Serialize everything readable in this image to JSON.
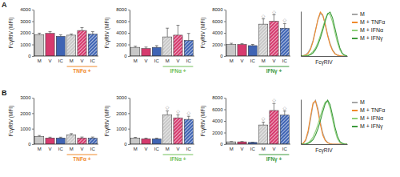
{
  "chart_data": [
    {
      "type": "bar",
      "title": "A",
      "y_label": "FcγRIV (MFI)",
      "categories": [
        "M",
        "V",
        "IC",
        "M",
        "V",
        "IC"
      ],
      "values": [
        1850,
        1950,
        1700,
        1800,
        2200,
        1900
      ],
      "errors": [
        120,
        150,
        130,
        100,
        250,
        200
      ],
      "colors": [
        "#c8c8c8",
        "#d63a6e",
        "#3f64b4",
        "#c8c8c8",
        "#d63a6e",
        "#3f64b4"
      ],
      "ylim": [
        0,
        4000
      ],
      "yticks": [
        0,
        1000,
        2000,
        3000,
        4000
      ],
      "grid": false,
      "annotations": [
        {
          "text": "TNFα +",
          "categories": [
            3,
            5
          ],
          "color": "#f08a2c"
        }
      ]
    },
    {
      "type": "bar",
      "y_label": "FcγRIV (MFI)",
      "categories": [
        "M",
        "V",
        "IC",
        "M",
        "V",
        "IC"
      ],
      "values": [
        1500,
        1300,
        1500,
        3300,
        3600,
        2700
      ],
      "errors": [
        200,
        250,
        300,
        1500,
        1700,
        1200
      ],
      "colors": [
        "#c8c8c8",
        "#d63a6e",
        "#3f64b4",
        "#c8c8c8",
        "#d63a6e",
        "#3f64b4"
      ],
      "ylim": [
        0,
        8000
      ],
      "yticks": [
        0,
        2000,
        4000,
        6000,
        8000
      ],
      "grid": false,
      "annotations": [
        {
          "text": "IFNα +",
          "categories": [
            3,
            5
          ],
          "color": "#72c05b"
        }
      ]
    },
    {
      "type": "bar",
      "y_label": "FcγRIV (MFI)",
      "categories": [
        "M",
        "V",
        "IC",
        "M",
        "V",
        "IC"
      ],
      "values": [
        2000,
        2000,
        1800,
        5500,
        6000,
        4800
      ],
      "errors": [
        200,
        150,
        200,
        900,
        1100,
        800
      ],
      "colors": [
        "#c8c8c8",
        "#d63a6e",
        "#3f64b4",
        "#c8c8c8",
        "#d63a6e",
        "#3f64b4"
      ],
      "ylim": [
        0,
        8000
      ],
      "yticks": [
        0,
        2000,
        4000,
        6000,
        8000
      ],
      "grid": false,
      "annotations": [
        {
          "text": "IFNγ +",
          "categories": [
            3,
            5
          ],
          "color": "#3d9a3d"
        },
        {
          "text": "◇",
          "categories": [
            3,
            3
          ]
        },
        {
          "text": "◇",
          "categories": [
            4,
            4
          ]
        },
        {
          "text": "◇",
          "categories": [
            5,
            5
          ]
        }
      ]
    },
    {
      "type": "line",
      "x_label": "FcγRIV",
      "tick_labels": false,
      "legend": "right",
      "x": [
        0,
        1,
        2,
        3,
        4,
        5,
        6,
        7,
        8,
        9,
        10,
        11,
        12,
        13,
        14,
        15,
        16,
        17,
        18,
        19
      ],
      "xlim": [
        0,
        19
      ],
      "ylim": [
        0,
        100
      ],
      "xticks": [],
      "yticks": [],
      "series": [
        {
          "name": "M",
          "color": "#a6a6a6",
          "values": [
            0,
            1,
            3,
            8,
            18,
            35,
            58,
            80,
            95,
            90,
            72,
            48,
            28,
            14,
            6,
            2,
            1,
            0,
            0,
            0
          ]
        },
        {
          "name": "M + TNFα",
          "color": "#f08a2c",
          "values": [
            0,
            1,
            2,
            6,
            15,
            32,
            56,
            82,
            98,
            92,
            70,
            45,
            25,
            12,
            5,
            2,
            1,
            0,
            0,
            0
          ]
        },
        {
          "name": "M + IFNα",
          "color": "#8fd17a",
          "values": [
            0,
            0,
            1,
            2,
            5,
            10,
            18,
            30,
            46,
            64,
            82,
            95,
            92,
            76,
            52,
            30,
            14,
            5,
            1,
            0
          ]
        },
        {
          "name": "M + IFNγ",
          "color": "#3d9a3d",
          "values": [
            0,
            0,
            0,
            1,
            3,
            7,
            14,
            25,
            40,
            58,
            78,
            94,
            98,
            85,
            62,
            38,
            18,
            6,
            2,
            0
          ]
        }
      ]
    },
    {
      "type": "bar",
      "title": "B",
      "y_label": "FcγRIV (MFI)",
      "categories": [
        "M",
        "V",
        "IC",
        "M",
        "V",
        "IC"
      ],
      "values": [
        500,
        400,
        400,
        600,
        400,
        400
      ],
      "errors": [
        60,
        50,
        50,
        80,
        60,
        60
      ],
      "colors": [
        "#c8c8c8",
        "#d63a6e",
        "#3f64b4",
        "#c8c8c8",
        "#d63a6e",
        "#3f64b4"
      ],
      "ylim": [
        0,
        3000
      ],
      "yticks": [
        0,
        1000,
        2000,
        3000
      ],
      "grid": false,
      "annotations": [
        {
          "text": "TNFα +",
          "categories": [
            3,
            5
          ],
          "color": "#f08a2c"
        }
      ]
    },
    {
      "type": "bar",
      "y_label": "FcγRIV (MFI)",
      "categories": [
        "M",
        "V",
        "IC",
        "M",
        "V",
        "IC"
      ],
      "values": [
        400,
        350,
        350,
        1900,
        1700,
        1600
      ],
      "errors": [
        40,
        40,
        40,
        250,
        200,
        200
      ],
      "colors": [
        "#c8c8c8",
        "#d63a6e",
        "#3f64b4",
        "#c8c8c8",
        "#d63a6e",
        "#3f64b4"
      ],
      "ylim": [
        0,
        3000
      ],
      "yticks": [
        0,
        1000,
        2000,
        3000
      ],
      "grid": false,
      "annotations": [
        {
          "text": "IFNα +",
          "categories": [
            3,
            5
          ],
          "color": "#72c05b"
        },
        {
          "text": "◇",
          "categories": [
            3,
            3
          ]
        },
        {
          "text": "◇",
          "categories": [
            4,
            4
          ]
        },
        {
          "text": "◇",
          "categories": [
            5,
            5
          ]
        }
      ]
    },
    {
      "type": "bar",
      "y_label": "FcγRIV (MFI)",
      "categories": [
        "M",
        "V",
        "IC",
        "M",
        "V",
        "IC"
      ],
      "values": [
        400,
        400,
        300,
        3300,
        5800,
        5000
      ],
      "errors": [
        50,
        50,
        40,
        500,
        1200,
        700
      ],
      "colors": [
        "#c8c8c8",
        "#d63a6e",
        "#3f64b4",
        "#c8c8c8",
        "#d63a6e",
        "#3f64b4"
      ],
      "ylim": [
        0,
        8000
      ],
      "yticks": [
        0,
        2000,
        4000,
        6000,
        8000
      ],
      "grid": false,
      "annotations": [
        {
          "text": "IFNγ +",
          "categories": [
            3,
            5
          ],
          "color": "#3d9a3d"
        },
        {
          "text": "◇",
          "categories": [
            3,
            3
          ]
        },
        {
          "text": "◇",
          "categories": [
            4,
            4
          ]
        },
        {
          "text": "◇",
          "categories": [
            5,
            5
          ]
        }
      ]
    },
    {
      "type": "line",
      "x_label": "FcγRIV",
      "tick_labels": false,
      "legend": "right",
      "x": [
        0,
        1,
        2,
        3,
        4,
        5,
        6,
        7,
        8,
        9,
        10,
        11,
        12,
        13,
        14,
        15,
        16,
        17,
        18,
        19
      ],
      "xlim": [
        0,
        19
      ],
      "ylim": [
        0,
        100
      ],
      "xticks": [],
      "yticks": [],
      "series": [
        {
          "name": "M",
          "color": "#a6a6a6",
          "values": [
            0,
            2,
            8,
            25,
            55,
            88,
            98,
            80,
            50,
            25,
            10,
            4,
            1,
            0,
            0,
            0,
            0,
            0,
            0,
            0
          ]
        },
        {
          "name": "M + TNFα",
          "color": "#f08a2c",
          "values": [
            0,
            2,
            10,
            30,
            62,
            92,
            96,
            74,
            44,
            20,
            8,
            3,
            1,
            0,
            0,
            0,
            0,
            0,
            0,
            0
          ]
        },
        {
          "name": "M + IFNα",
          "color": "#8fd17a",
          "values": [
            0,
            0,
            1,
            3,
            8,
            16,
            28,
            44,
            62,
            80,
            94,
            96,
            80,
            55,
            30,
            12,
            4,
            1,
            0,
            0
          ]
        },
        {
          "name": "M + IFNγ",
          "color": "#3d9a3d",
          "values": [
            0,
            0,
            0,
            2,
            5,
            10,
            20,
            34,
            52,
            72,
            90,
            98,
            88,
            64,
            38,
            18,
            6,
            2,
            0,
            0
          ]
        }
      ]
    }
  ]
}
